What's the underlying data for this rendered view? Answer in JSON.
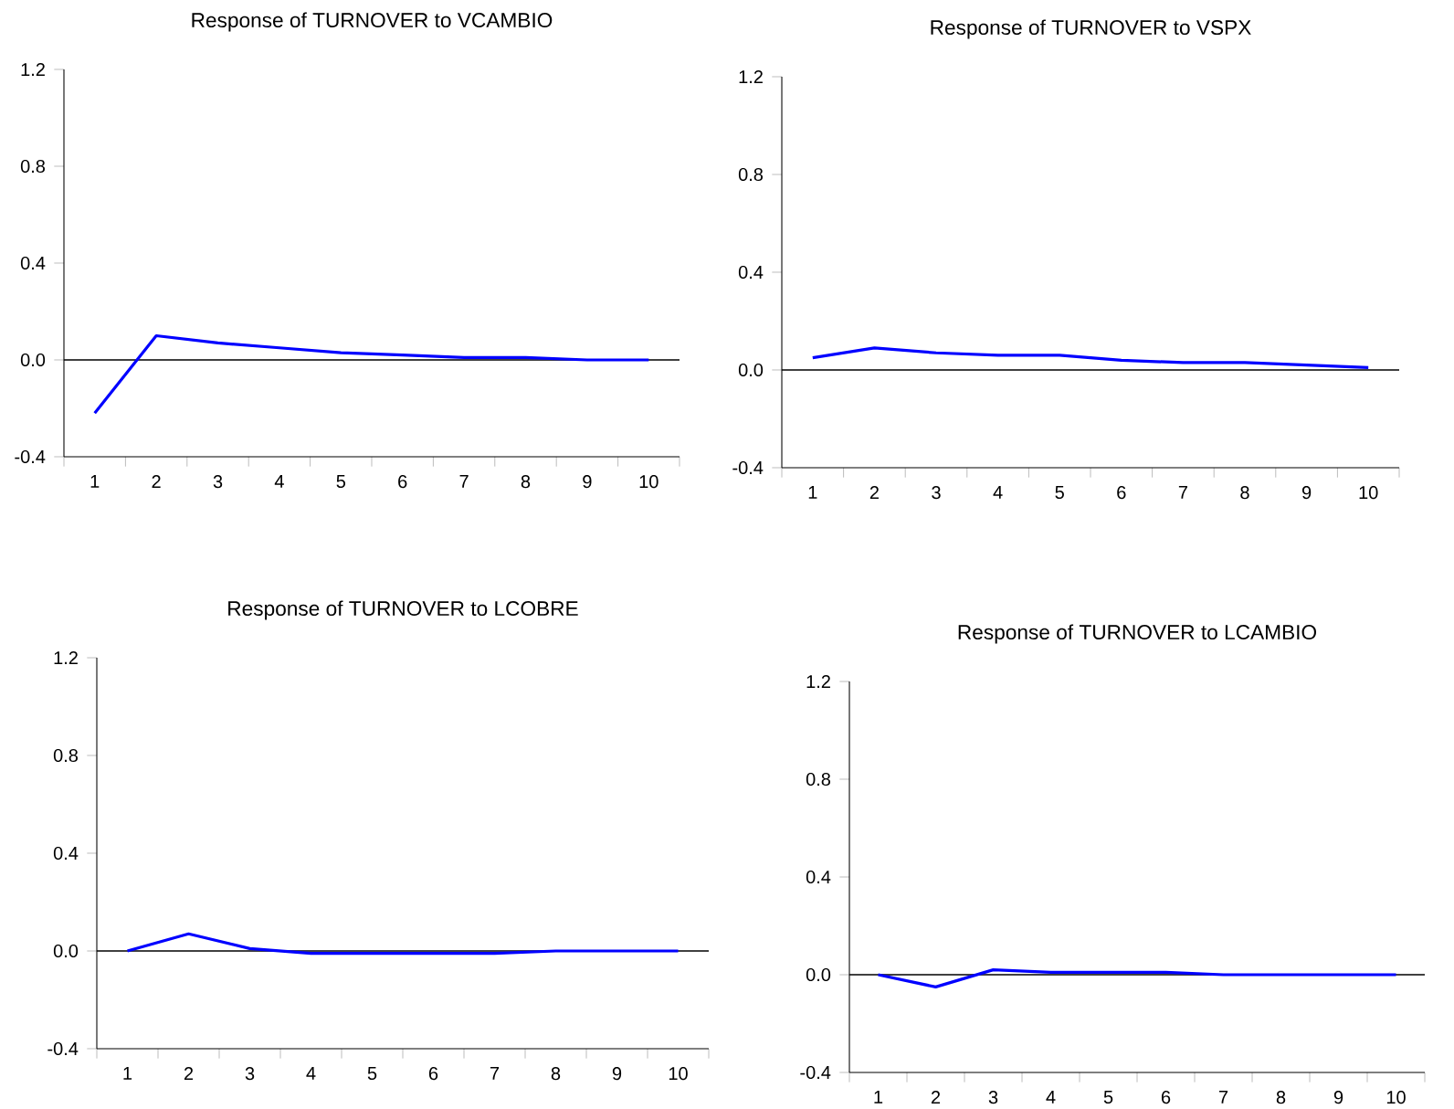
{
  "chart_data": [
    {
      "type": "line",
      "title": "Response of TURNOVER to VCAMBIO",
      "categories": [
        "1",
        "2",
        "3",
        "4",
        "5",
        "6",
        "7",
        "8",
        "9",
        "10"
      ],
      "values": [
        -0.22,
        0.1,
        0.07,
        0.05,
        0.03,
        0.02,
        0.01,
        0.01,
        0,
        0
      ],
      "color": "#0000ff",
      "ylim": [
        -0.4,
        1.2
      ],
      "yticks": [
        {
          "value": -0.4,
          "label": "-0.4"
        },
        {
          "value": 0,
          "label": "0.0"
        },
        {
          "value": 0.4,
          "label": "0.4"
        },
        {
          "value": 0.8,
          "label": "0.8"
        },
        {
          "value": 1.2,
          "label": "1.2"
        }
      ],
      "ref_lines": [
        {
          "axis": "y",
          "value": 0,
          "color": "#000000"
        }
      ]
    },
    {
      "type": "line",
      "title": "Response of TURNOVER to VSPX",
      "categories": [
        "1",
        "2",
        "3",
        "4",
        "5",
        "6",
        "7",
        "8",
        "9",
        "10"
      ],
      "values": [
        0.05,
        0.09,
        0.07,
        0.06,
        0.06,
        0.04,
        0.03,
        0.03,
        0.02,
        0.01
      ],
      "color": "#0000ff",
      "ylim": [
        -0.4,
        1.2
      ],
      "yticks": [
        {
          "value": -0.4,
          "label": "-0.4"
        },
        {
          "value": 0,
          "label": "0.0"
        },
        {
          "value": 0.4,
          "label": "0.4"
        },
        {
          "value": 0.8,
          "label": "0.8"
        },
        {
          "value": 1.2,
          "label": "1.2"
        }
      ],
      "ref_lines": [
        {
          "axis": "y",
          "value": 0,
          "color": "#000000"
        }
      ]
    },
    {
      "type": "line",
      "title": "Response of TURNOVER to LCOBRE",
      "categories": [
        "1",
        "2",
        "3",
        "4",
        "5",
        "6",
        "7",
        "8",
        "9",
        "10"
      ],
      "values": [
        0,
        0.07,
        0.01,
        -0.01,
        -0.01,
        -0.01,
        -0.01,
        0,
        0,
        0
      ],
      "color": "#0000ff",
      "ylim": [
        -0.4,
        1.2
      ],
      "yticks": [
        {
          "value": -0.4,
          "label": "-0.4"
        },
        {
          "value": 0,
          "label": "0.0"
        },
        {
          "value": 0.4,
          "label": "0.4"
        },
        {
          "value": 0.8,
          "label": "0.8"
        },
        {
          "value": 1.2,
          "label": "1.2"
        }
      ],
      "ref_lines": [
        {
          "axis": "y",
          "value": 0,
          "color": "#000000"
        }
      ]
    },
    {
      "type": "line",
      "title": "Response of TURNOVER to LCAMBIO",
      "categories": [
        "1",
        "2",
        "3",
        "4",
        "5",
        "6",
        "7",
        "8",
        "9",
        "10"
      ],
      "values": [
        0,
        -0.05,
        0.02,
        0.01,
        0.01,
        0.01,
        0,
        0,
        0,
        0
      ],
      "color": "#0000ff",
      "ylim": [
        -0.4,
        1.2
      ],
      "yticks": [
        {
          "value": -0.4,
          "label": "-0.4"
        },
        {
          "value": 0,
          "label": "0.0"
        },
        {
          "value": 0.4,
          "label": "0.4"
        },
        {
          "value": 0.8,
          "label": "0.8"
        },
        {
          "value": 1.2,
          "label": "1.2"
        }
      ],
      "ref_lines": [
        {
          "axis": "y",
          "value": 0,
          "color": "#000000"
        }
      ]
    }
  ]
}
